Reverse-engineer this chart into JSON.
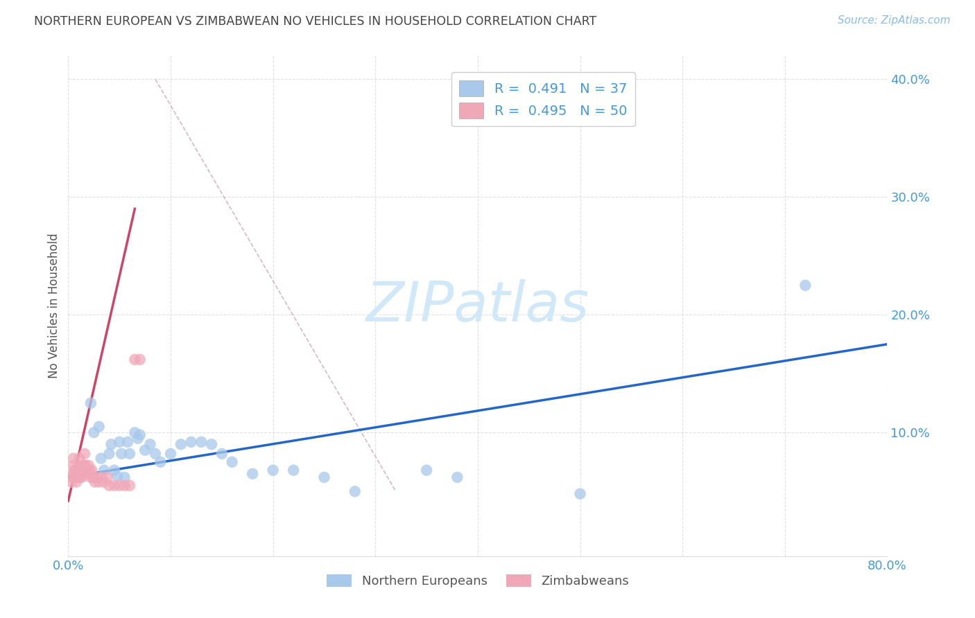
{
  "title": "NORTHERN EUROPEAN VS ZIMBABWEAN NO VEHICLES IN HOUSEHOLD CORRELATION CHART",
  "source": "Source: ZipAtlas.com",
  "ylabel": "No Vehicles in Household",
  "xlim": [
    0.0,
    0.8
  ],
  "ylim": [
    -0.005,
    0.42
  ],
  "yticks": [
    0.1,
    0.2,
    0.3,
    0.4
  ],
  "ytick_labels": [
    "10.0%",
    "20.0%",
    "30.0%",
    "40.0%"
  ],
  "xticks": [
    0.0,
    0.1,
    0.2,
    0.3,
    0.4,
    0.5,
    0.6,
    0.7,
    0.8
  ],
  "xtick_labels": [
    "0.0%",
    "",
    "",
    "",
    "",
    "",
    "",
    "",
    "80.0%"
  ],
  "blue_color": "#A8C8EC",
  "pink_color": "#F0A8B8",
  "blue_line_color": "#2266CC",
  "pink_line_color": "#CC4466",
  "diag_line_color": "#CCAAAA",
  "axis_color": "#4499DD",
  "title_color": "#444444",
  "source_color": "#88BBEE",
  "watermark_color": "#D0E8F8",
  "watermark": "ZIPatlas",
  "legend_r_blue": "R =  0.491",
  "legend_n_blue": "N = 37",
  "legend_r_pink": "R =  0.495",
  "legend_n_pink": "N = 50",
  "blue_scatter_x": [
    0.022,
    0.025,
    0.03,
    0.032,
    0.035,
    0.04,
    0.042,
    0.045,
    0.048,
    0.05,
    0.052,
    0.055,
    0.058,
    0.06,
    0.065,
    0.068,
    0.07,
    0.075,
    0.08,
    0.085,
    0.09,
    0.1,
    0.11,
    0.12,
    0.13,
    0.14,
    0.15,
    0.16,
    0.18,
    0.2,
    0.22,
    0.25,
    0.28,
    0.35,
    0.38,
    0.5,
    0.72
  ],
  "blue_scatter_y": [
    0.125,
    0.1,
    0.105,
    0.078,
    0.068,
    0.082,
    0.09,
    0.068,
    0.063,
    0.092,
    0.082,
    0.062,
    0.092,
    0.082,
    0.1,
    0.095,
    0.098,
    0.085,
    0.09,
    0.082,
    0.075,
    0.082,
    0.09,
    0.092,
    0.092,
    0.09,
    0.082,
    0.075,
    0.065,
    0.068,
    0.068,
    0.062,
    0.05,
    0.068,
    0.062,
    0.048,
    0.225
  ],
  "pink_scatter_x": [
    0.003,
    0.004,
    0.005,
    0.005,
    0.005,
    0.006,
    0.006,
    0.007,
    0.007,
    0.008,
    0.009,
    0.009,
    0.01,
    0.01,
    0.011,
    0.011,
    0.012,
    0.012,
    0.013,
    0.013,
    0.014,
    0.014,
    0.015,
    0.015,
    0.016,
    0.016,
    0.017,
    0.017,
    0.018,
    0.019,
    0.02,
    0.02,
    0.021,
    0.022,
    0.023,
    0.024,
    0.025,
    0.026,
    0.028,
    0.03,
    0.032,
    0.035,
    0.038,
    0.04,
    0.045,
    0.05,
    0.055,
    0.06,
    0.065,
    0.07
  ],
  "pink_scatter_y": [
    0.058,
    0.062,
    0.065,
    0.072,
    0.078,
    0.062,
    0.068,
    0.062,
    0.068,
    0.058,
    0.062,
    0.068,
    0.062,
    0.068,
    0.07,
    0.078,
    0.062,
    0.068,
    0.062,
    0.068,
    0.068,
    0.072,
    0.072,
    0.065,
    0.082,
    0.072,
    0.072,
    0.068,
    0.068,
    0.068,
    0.072,
    0.065,
    0.068,
    0.062,
    0.068,
    0.062,
    0.062,
    0.058,
    0.062,
    0.058,
    0.062,
    0.058,
    0.062,
    0.055,
    0.055,
    0.055,
    0.055,
    0.055,
    0.162,
    0.162
  ],
  "blue_line_x": [
    0.0,
    0.8
  ],
  "blue_line_y": [
    0.062,
    0.175
  ],
  "pink_line_x": [
    0.0,
    0.065
  ],
  "pink_line_y": [
    0.042,
    0.29
  ],
  "diag_line_x": [
    0.085,
    0.32
  ],
  "diag_line_y": [
    0.4,
    0.05
  ],
  "background_color": "#FFFFFF",
  "grid_color": "#DDDDDD"
}
